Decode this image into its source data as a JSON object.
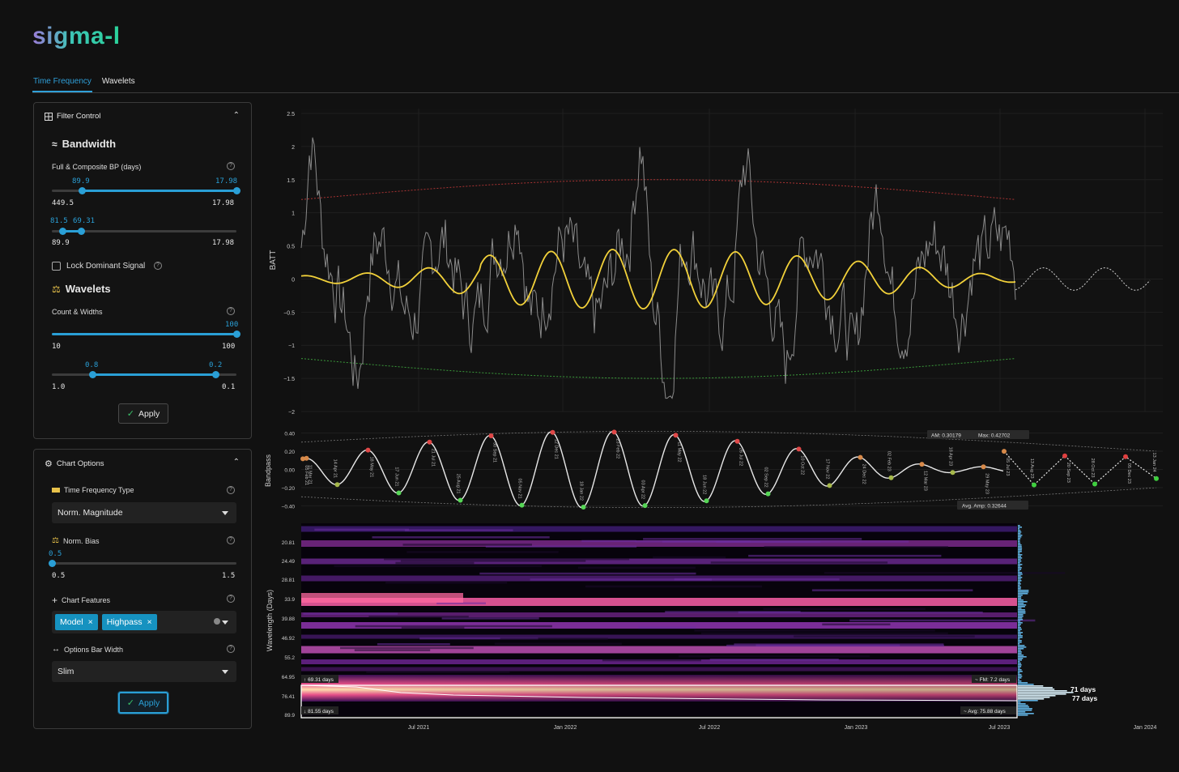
{
  "app": {
    "logo": "sigma-l"
  },
  "tabs": [
    {
      "label": "Time Frequency",
      "active": true
    },
    {
      "label": "Wavelets",
      "active": false
    }
  ],
  "filter_control": {
    "title": "Filter Control",
    "bandwidth": {
      "title": "Bandwidth",
      "label": "Full & Composite BP (days)",
      "slider1": {
        "low_label": "89.9",
        "high_label": "17.98",
        "min": "449.5",
        "max": "17.98"
      },
      "slider2": {
        "low_label": "81.5",
        "high_label": "69.31",
        "min": "89.9",
        "max": "17.98"
      }
    },
    "lock_label": "Lock Dominant Signal",
    "wavelets": {
      "title": "Wavelets",
      "label": "Count & Widths",
      "slider1": {
        "value_label": "100",
        "min": "10",
        "max": "100"
      },
      "slider2": {
        "low_label": "0.8",
        "high_label": "0.2",
        "min": "1.0",
        "max": "0.1"
      }
    },
    "apply": "Apply"
  },
  "chart_options": {
    "title": "Chart Options",
    "tf_type": {
      "label": "Time Frequency Type",
      "value": "Norm. Magnitude"
    },
    "norm_bias": {
      "label": "Norm. Bias",
      "value_label": "0.5",
      "min": "0.5",
      "max": "1.5"
    },
    "features": {
      "label": "Chart Features",
      "chips": [
        "Model",
        "Highpass"
      ]
    },
    "bar_width": {
      "label": "Options Bar Width",
      "value": "Slim"
    },
    "apply": "Apply"
  },
  "chart_data": [
    {
      "type": "line",
      "ylabel": "BATT",
      "yticks": [
        "2.5",
        "2",
        "1.5",
        "1",
        "0.5",
        "0",
        "−0.5",
        "−1",
        "−1.5",
        "−2"
      ],
      "ylim": [
        -2,
        2.5
      ],
      "note": "price series (gray), model sine (yellow), projected model (dotted), upper/lower envelopes"
    },
    {
      "type": "line",
      "ylabel": "Bandpass",
      "yticks": [
        "0.40",
        "0.20",
        "0.00",
        "−0.20",
        "−0.40"
      ],
      "ylim": [
        -0.45,
        0.45
      ],
      "peak_trough_labels": [
        "05 Feb 21",
        "11 Mar 21",
        "14 Apr 21",
        "18 May 21",
        "17 Jun 21",
        "21 Jul 21",
        "25 Aug 21",
        "30 Sep 21",
        "05 Nov 21",
        "12 Dec 21",
        "18 Jan 22",
        "23 Feb 22",
        "03 Apr 22",
        "11 May 22",
        "18 Jun 22",
        "26 Jul 22",
        "02 Sep 22",
        "10 Oct 22",
        "17 Nov 22",
        "24 Dec 22",
        "02 Feb 23",
        "12 Mar 23",
        "18 Apr 23",
        "29 May 23",
        "05 Jul 23",
        "13 Aug 23",
        "20 Sep 23",
        "28 Oct 23",
        "05 Dec 23",
        "13 Jan 24"
      ],
      "annotations": {
        "am": "AM: 0.30179",
        "max": "Max: 0.42702",
        "avg_amp": "Avg. Amp: 0.32644"
      }
    },
    {
      "type": "heatmap",
      "ylabel": "Wavelength (Days)",
      "yticks": [
        "20.81",
        "24.49",
        "28.81",
        "33.9",
        "39.88",
        "46.92",
        "55.2",
        "64.95",
        "76.41",
        "89.9"
      ],
      "xticks": [
        "Jul 2021",
        "Jan 2022",
        "Jul 2022",
        "Jan 2023",
        "Jul 2023",
        "Jan 2024"
      ],
      "annotations": {
        "upper": "69.31 days",
        "lower": "81.55 days",
        "fm": "FM: 7.2 days",
        "avg": "Avg: 75.88 days",
        "peak1": "71 days",
        "peak2": "77 days"
      }
    }
  ]
}
